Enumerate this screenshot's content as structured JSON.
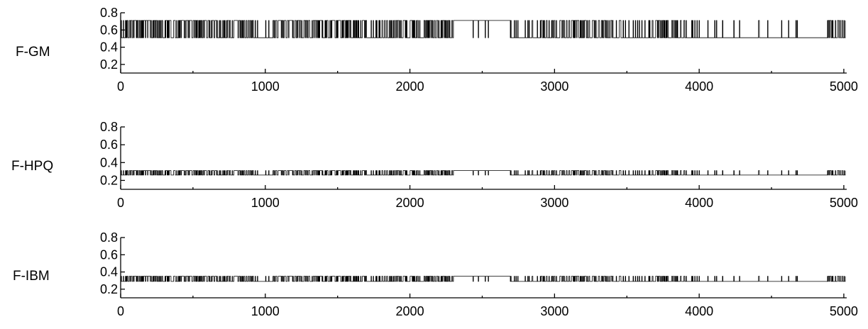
{
  "chart_data": [
    {
      "type": "line",
      "series": [
        {
          "name": "F-GM",
          "base": 0.51,
          "high": 0.71
        }
      ],
      "xlim": [
        0,
        5020
      ],
      "ylim": [
        0.1,
        0.8
      ],
      "xticks": [
        0,
        1000,
        2000,
        3000,
        4000,
        5000
      ],
      "yticks": [
        0.2,
        0.4,
        0.6,
        0.8
      ],
      "yticklabels": [
        "0.2",
        "0.4",
        "0.6",
        "0.8"
      ],
      "xticklabels": [
        "0",
        "1000",
        "2000",
        "3000",
        "4000",
        "5000"
      ],
      "grid": false
    },
    {
      "type": "line",
      "series": [
        {
          "name": "F-HPQ",
          "base": 0.26,
          "high": 0.31
        }
      ],
      "xlim": [
        0,
        5020
      ],
      "ylim": [
        0.1,
        0.8
      ],
      "xticks": [
        0,
        1000,
        2000,
        3000,
        4000,
        5000
      ],
      "yticks": [
        0.2,
        0.4,
        0.6,
        0.8
      ],
      "yticklabels": [
        "0.2",
        "0.4",
        "0.6",
        "0.8"
      ],
      "xticklabels": [
        "0",
        "1000",
        "2000",
        "3000",
        "4000",
        "5000"
      ],
      "grid": false
    },
    {
      "type": "line",
      "series": [
        {
          "name": "F-IBM",
          "base": 0.29,
          "high": 0.35
        }
      ],
      "xlim": [
        0,
        5020
      ],
      "ylim": [
        0.1,
        0.8
      ],
      "xticks": [
        0,
        1000,
        2000,
        3000,
        4000,
        5000
      ],
      "yticks": [
        0.2,
        0.4,
        0.6,
        0.8
      ],
      "yticklabels": [
        "0.2",
        "0.4",
        "0.6",
        "0.8"
      ],
      "xticklabels": [
        "0",
        "1000",
        "2000",
        "3000",
        "4000",
        "5000"
      ],
      "grid": false
    }
  ]
}
